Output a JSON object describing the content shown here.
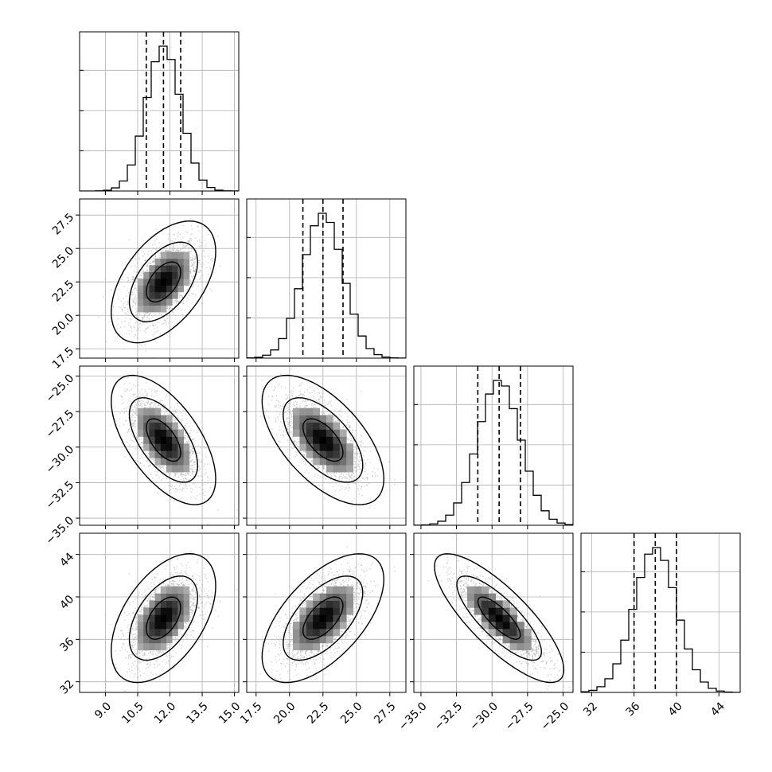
{
  "chart_data": {
    "type": "corner",
    "title": "",
    "parameters": [
      {
        "name": "",
        "mean": 11.7,
        "sigma": 0.8,
        "range": [
          7.8,
          15.2
        ],
        "quantiles": [
          10.9,
          11.7,
          12.5
        ],
        "ticks": [
          9.0,
          10.5,
          12.0,
          13.5,
          15.0
        ],
        "tick_labels": [
          "9.0",
          "10.5",
          "12.0",
          "13.5",
          "15.0"
        ]
      },
      {
        "name": "",
        "mean": 22.5,
        "sigma": 1.5,
        "range": [
          16.8,
          28.7
        ],
        "quantiles": [
          21.0,
          22.5,
          24.0
        ],
        "ticks": [
          17.5,
          20.0,
          22.5,
          25.0,
          27.5
        ],
        "tick_labels": [
          "17.5",
          "20.0",
          "22.5",
          "25.0",
          "27.5"
        ]
      },
      {
        "name": "",
        "mean": -29.5,
        "sigma": 1.5,
        "range": [
          -35.5,
          -24.3
        ],
        "quantiles": [
          -31.0,
          -29.5,
          -28.0
        ],
        "ticks": [
          -35.0,
          -32.5,
          -30.0,
          -27.5,
          -25.0
        ],
        "tick_labels": [
          "−35.0",
          "−32.5",
          "−30.0",
          "−27.5",
          "−25.0"
        ]
      },
      {
        "name": "",
        "mean": 38.0,
        "sigma": 2.0,
        "range": [
          31.0,
          46.0
        ],
        "quantiles": [
          36.0,
          38.0,
          40.0
        ],
        "ticks": [
          32,
          36,
          40,
          44
        ],
        "tick_labels": [
          "32",
          "36",
          "40",
          "44"
        ]
      }
    ],
    "correlations": [
      [
        1.0,
        0.5,
        -0.6,
        0.5
      ],
      [
        0.5,
        1.0,
        -0.6,
        0.6
      ],
      [
        -0.6,
        -0.6,
        1.0,
        -0.8
      ],
      [
        0.5,
        0.6,
        -0.8,
        1.0
      ]
    ],
    "histogram_bins": 20,
    "contour_levels": [
      0.39,
      0.86,
      0.99
    ],
    "grid": true,
    "colors": {
      "line": "#000000",
      "points": "#9a9a9a",
      "grid": "#b0b0b0"
    }
  }
}
